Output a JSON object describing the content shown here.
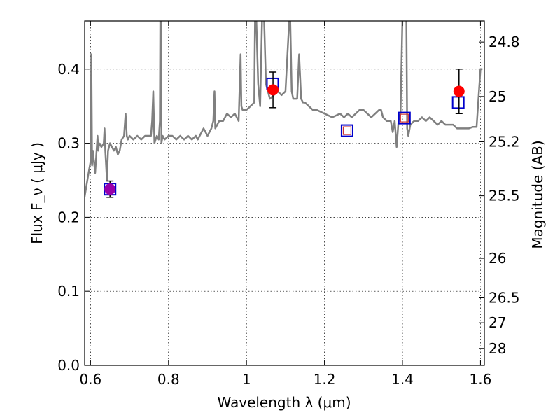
{
  "chart_data": {
    "type": "scatter",
    "xlabel": "Wavelength  λ (μm)",
    "ylabel": "Flux  F_ν  ( μJy )",
    "ylabel_right": "Magnitude (AB)",
    "xlim": [
      0.585,
      1.61
    ],
    "ylim": [
      0.0,
      0.465
    ],
    "grid": true,
    "x_ticks": [
      0.6,
      0.8,
      1.0,
      1.2,
      1.4,
      1.6
    ],
    "x_tick_labels": [
      "0.6",
      "0.8",
      "1",
      "1.2",
      "1.4",
      "1.6"
    ],
    "y_ticks": [
      0.0,
      0.1,
      0.2,
      0.3,
      0.4
    ],
    "y_tick_labels": [
      "0.0",
      "0.1",
      "0.2",
      "0.3",
      "0.4"
    ],
    "right_ticks": [
      {
        "label": "24.8",
        "mag": 24.8
      },
      {
        "label": "25",
        "mag": 25.0
      },
      {
        "label": "25.2",
        "mag": 25.2
      },
      {
        "label": "25.5",
        "mag": 25.5
      },
      {
        "label": "26",
        "mag": 26.0
      },
      {
        "label": "26.5",
        "mag": 26.5
      },
      {
        "label": "27",
        "mag": 27.0
      },
      {
        "label": "28",
        "mag": 28.0
      }
    ],
    "colors": {
      "spectrum": "#808080",
      "observed": "#ff0000",
      "model_box": "#0000cc",
      "model_box_small": "#cc3333",
      "overlap": "#9900aa"
    },
    "spectrum": {
      "x": [
        0.585,
        0.595,
        0.6,
        0.602,
        0.604,
        0.606,
        0.612,
        0.618,
        0.62,
        0.622,
        0.628,
        0.634,
        0.636,
        0.638,
        0.642,
        0.645,
        0.65,
        0.655,
        0.66,
        0.665,
        0.67,
        0.675,
        0.68,
        0.686,
        0.69,
        0.693,
        0.696,
        0.7,
        0.71,
        0.72,
        0.73,
        0.74,
        0.75,
        0.755,
        0.758,
        0.761,
        0.764,
        0.77,
        0.775,
        0.778,
        0.779,
        0.781,
        0.782,
        0.785,
        0.79,
        0.8,
        0.81,
        0.82,
        0.83,
        0.84,
        0.85,
        0.86,
        0.87,
        0.875,
        0.88,
        0.89,
        0.9,
        0.91,
        0.915,
        0.918,
        0.92,
        0.93,
        0.94,
        0.95,
        0.96,
        0.97,
        0.98,
        0.985,
        0.987,
        0.99,
        1.0,
        1.01,
        1.02,
        1.022,
        1.025,
        1.03,
        1.035,
        1.04,
        1.045,
        1.05,
        1.055,
        1.06,
        1.07,
        1.08,
        1.09,
        1.1,
        1.11,
        1.112,
        1.116,
        1.12,
        1.13,
        1.135,
        1.14,
        1.145,
        1.15,
        1.16,
        1.17,
        1.18,
        1.2,
        1.22,
        1.24,
        1.25,
        1.26,
        1.27,
        1.28,
        1.29,
        1.3,
        1.31,
        1.32,
        1.33,
        1.34,
        1.345,
        1.35,
        1.36,
        1.37,
        1.375,
        1.38,
        1.385,
        1.39,
        1.395,
        1.4,
        1.405,
        1.41,
        1.412,
        1.415,
        1.42,
        1.43,
        1.44,
        1.45,
        1.46,
        1.47,
        1.48,
        1.49,
        1.5,
        1.51,
        1.52,
        1.53,
        1.54,
        1.55,
        1.56,
        1.57,
        1.58,
        1.59,
        1.6,
        1.605
      ],
      "y": [
        0.228,
        0.26,
        0.275,
        0.42,
        0.27,
        0.29,
        0.26,
        0.31,
        0.29,
        0.3,
        0.295,
        0.3,
        0.32,
        0.29,
        0.25,
        0.29,
        0.3,
        0.295,
        0.29,
        0.295,
        0.285,
        0.29,
        0.305,
        0.31,
        0.34,
        0.31,
        0.305,
        0.31,
        0.305,
        0.31,
        0.305,
        0.31,
        0.31,
        0.31,
        0.33,
        0.37,
        0.3,
        0.31,
        0.305,
        0.33,
        0.47,
        0.47,
        0.3,
        0.31,
        0.305,
        0.31,
        0.31,
        0.305,
        0.31,
        0.305,
        0.31,
        0.305,
        0.31,
        0.305,
        0.31,
        0.32,
        0.31,
        0.32,
        0.33,
        0.37,
        0.32,
        0.33,
        0.33,
        0.34,
        0.335,
        0.34,
        0.33,
        0.42,
        0.35,
        0.345,
        0.345,
        0.35,
        0.355,
        0.47,
        0.47,
        0.38,
        0.35,
        0.47,
        0.47,
        0.38,
        0.37,
        0.36,
        0.365,
        0.37,
        0.365,
        0.37,
        0.47,
        0.47,
        0.37,
        0.36,
        0.36,
        0.42,
        0.36,
        0.355,
        0.355,
        0.35,
        0.345,
        0.345,
        0.34,
        0.335,
        0.34,
        0.335,
        0.34,
        0.335,
        0.34,
        0.345,
        0.345,
        0.34,
        0.335,
        0.34,
        0.345,
        0.345,
        0.335,
        0.33,
        0.33,
        0.315,
        0.33,
        0.295,
        0.33,
        0.34,
        0.47,
        0.47,
        0.47,
        0.32,
        0.31,
        0.325,
        0.33,
        0.33,
        0.335,
        0.33,
        0.335,
        0.33,
        0.325,
        0.33,
        0.325,
        0.325,
        0.325,
        0.32,
        0.32,
        0.32,
        0.32,
        0.322,
        0.322,
        0.4,
        0.4
      ]
    },
    "observed": [
      {
        "x": 0.65,
        "y": 0.238,
        "err": 0.011,
        "color": "#9900aa"
      },
      {
        "x": 1.068,
        "y": 0.372,
        "err": 0.024,
        "color": "#ff0000"
      },
      {
        "x": 1.545,
        "y": 0.37,
        "err": 0.03,
        "color": "#ff0000"
      }
    ],
    "model_boxes": [
      {
        "x": 0.65,
        "y": 0.238,
        "size": "large"
      },
      {
        "x": 1.067,
        "y": 0.38,
        "size": "large"
      },
      {
        "x": 1.258,
        "y": 0.317,
        "size": "large"
      },
      {
        "x": 1.405,
        "y": 0.334,
        "size": "large"
      },
      {
        "x": 1.543,
        "y": 0.355,
        "size": "large"
      }
    ],
    "model_boxes_small": [
      {
        "x": 1.258,
        "y": 0.317
      },
      {
        "x": 1.405,
        "y": 0.334
      }
    ]
  }
}
